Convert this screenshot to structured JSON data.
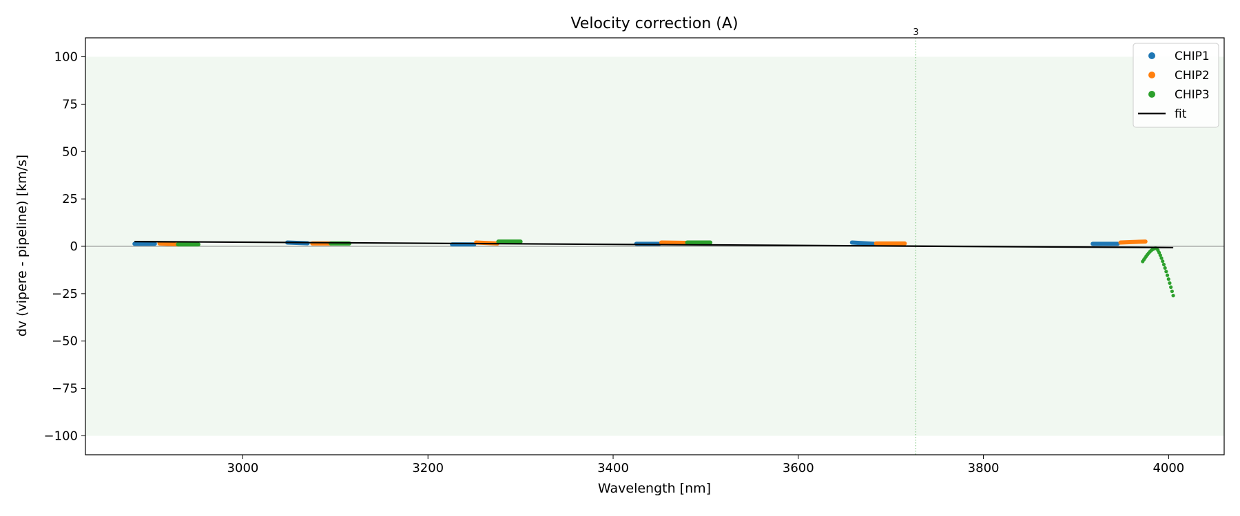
{
  "chart_data": {
    "type": "scatter",
    "title": "Velocity correction (A)",
    "xlabel": "Wavelength [nm]",
    "ylabel": "dv (vipere - pipeline) [km/s]",
    "xlim": [
      2830,
      4060
    ],
    "ylim": [
      -110,
      110
    ],
    "x_ticks": [
      3000,
      3200,
      3400,
      3600,
      3800,
      4000
    ],
    "y_ticks": [
      100,
      75,
      50,
      25,
      0,
      -25,
      -50,
      -75,
      -100
    ],
    "y_tick_labels": [
      "100",
      "75",
      "50",
      "25",
      "0",
      "−25",
      "−50",
      "−75",
      "−100"
    ],
    "shaded_band": {
      "y0": -100,
      "y1": 100,
      "color": "#f1f8f1"
    },
    "zero_line": {
      "y": 0,
      "color": "#888888"
    },
    "vline": {
      "x": 3727,
      "label": "3",
      "color": "#2ca02c"
    },
    "legend_position": "top-right",
    "series": [
      {
        "name": "CHIP1",
        "color": "#1f77b4",
        "segments": [
          {
            "x0": 2883,
            "x1": 2905,
            "y0": 1.3,
            "y1": 1.3
          },
          {
            "x0": 3048,
            "x1": 3070,
            "y0": 2.0,
            "y1": 1.6
          },
          {
            "x0": 3226,
            "x1": 3250,
            "y0": 1.0,
            "y1": 1.0
          },
          {
            "x0": 3425,
            "x1": 3450,
            "y0": 1.3,
            "y1": 1.3
          },
          {
            "x0": 3658,
            "x1": 3682,
            "y0": 2.0,
            "y1": 1.3
          },
          {
            "x0": 3918,
            "x1": 3945,
            "y0": 1.3,
            "y1": 1.3
          }
        ]
      },
      {
        "name": "CHIP2",
        "color": "#ff7f0e",
        "segments": [
          {
            "x0": 2910,
            "x1": 2930,
            "y0": 1.5,
            "y1": 1.0
          },
          {
            "x0": 3075,
            "x1": 3095,
            "y0": 1.5,
            "y1": 1.5
          },
          {
            "x0": 3252,
            "x1": 3275,
            "y0": 2.0,
            "y1": 1.5
          },
          {
            "x0": 3452,
            "x1": 3480,
            "y0": 2.0,
            "y1": 1.8
          },
          {
            "x0": 3684,
            "x1": 3715,
            "y0": 1.5,
            "y1": 1.5
          },
          {
            "x0": 3948,
            "x1": 3975,
            "y0": 2.0,
            "y1": 2.5
          }
        ]
      },
      {
        "name": "CHIP3",
        "color": "#2ca02c",
        "segments": [
          {
            "x0": 2930,
            "x1": 2952,
            "y0": 1.0,
            "y1": 1.0
          },
          {
            "x0": 3095,
            "x1": 3115,
            "y0": 1.5,
            "y1": 1.5
          },
          {
            "x0": 3276,
            "x1": 3300,
            "y0": 2.5,
            "y1": 2.5
          },
          {
            "x0": 3480,
            "x1": 3505,
            "y0": 2.0,
            "y1": 2.0
          },
          {
            "x0": 3972,
            "x1": 4005,
            "y0": -8,
            "y1": -26,
            "shape": "arc"
          }
        ]
      },
      {
        "name": "fit",
        "type": "line",
        "color": "#000000",
        "x": [
          2883,
          4005
        ],
        "y": [
          2.5,
          -0.7
        ]
      }
    ]
  }
}
